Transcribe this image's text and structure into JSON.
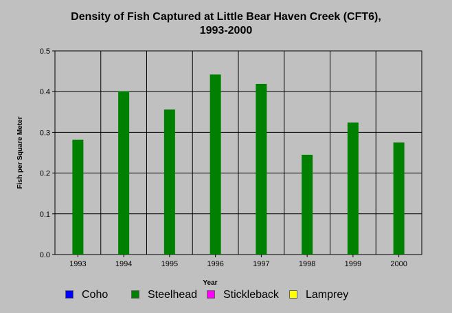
{
  "chart_data": {
    "type": "bar",
    "title": "Density of Fish Captured at Little Bear Haven Creek (CFT6),",
    "subtitle": "1993-2000",
    "xlabel": "Year",
    "ylabel": "Fish per Square Meter",
    "categories": [
      "1993",
      "1994",
      "1995",
      "1996",
      "1997",
      "1998",
      "1999",
      "2000"
    ],
    "series": [
      {
        "name": "Coho",
        "color": "#0000ff",
        "values": [
          0,
          0,
          0,
          0,
          0,
          0,
          0,
          0
        ]
      },
      {
        "name": "Steelhead",
        "color": "#008000",
        "values": [
          0.282,
          0.401,
          0.356,
          0.442,
          0.419,
          0.245,
          0.324,
          0.275
        ]
      },
      {
        "name": "Stickleback",
        "color": "#ff00ff",
        "values": [
          0,
          0,
          0,
          0,
          0,
          0,
          0,
          0
        ]
      },
      {
        "name": "Lamprey",
        "color": "#ffff00",
        "values": [
          0,
          0,
          0,
          0,
          0,
          0,
          0,
          0
        ]
      }
    ],
    "ylim": [
      0,
      0.5
    ],
    "yticks": [
      "0.0",
      "0.1",
      "0.2",
      "0.3",
      "0.4",
      "0.5"
    ],
    "grid": true,
    "legend_position": "bottom"
  }
}
